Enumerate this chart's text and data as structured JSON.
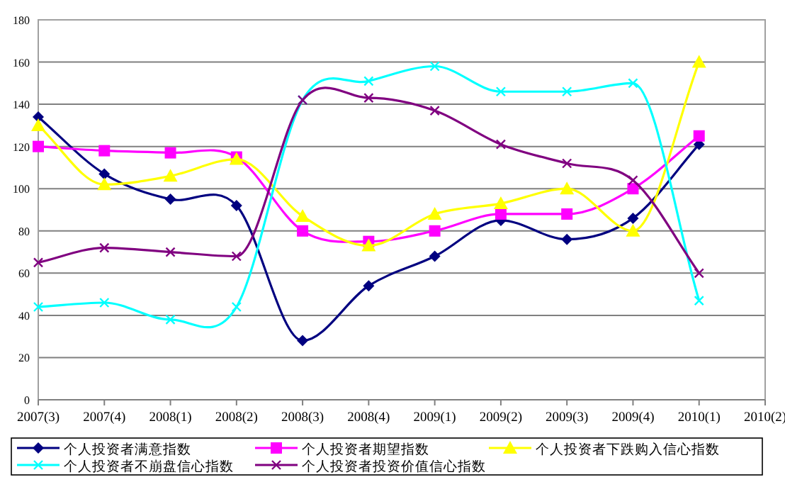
{
  "chart_data": {
    "type": "line",
    "categories": [
      "2007(3)",
      "2007(4)",
      "2008(1)",
      "2008(2)",
      "2008(3)",
      "2008(4)",
      "2009(1)",
      "2009(2)",
      "2009(3)",
      "2009(4)",
      "2010(1)",
      "2010(2)"
    ],
    "ylim": [
      0,
      180
    ],
    "yticks": [
      0,
      20,
      40,
      60,
      80,
      100,
      120,
      140,
      160,
      180
    ],
    "grid": "y",
    "legend": "bottom",
    "series": [
      {
        "name": "个人投资者满意指数",
        "color": "#000080",
        "marker": "diamond",
        "values": [
          134,
          107,
          95,
          92,
          28,
          54,
          68,
          85,
          76,
          86,
          121,
          null
        ]
      },
      {
        "name": "个人投资者期望指数",
        "color": "#ff00ff",
        "marker": "square",
        "values": [
          120,
          118,
          117,
          115,
          80,
          75,
          80,
          88,
          88,
          100,
          125,
          null
        ]
      },
      {
        "name": "个人投资者下跌购入信心指数",
        "color": "#ffff00",
        "marker": "triangle",
        "values": [
          130,
          102,
          106,
          114,
          87,
          73,
          88,
          93,
          100,
          80,
          160,
          null
        ]
      },
      {
        "name": "个人投资者不崩盘信心指数",
        "color": "#00ffff",
        "marker": "cross",
        "values": [
          44,
          46,
          38,
          44,
          142,
          151,
          158,
          146,
          146,
          150,
          47,
          null
        ]
      },
      {
        "name": "个人投资者投资价值信心指数",
        "color": "#800080",
        "marker": "cross",
        "values": [
          65,
          72,
          70,
          68,
          142,
          143,
          137,
          121,
          112,
          104,
          60,
          null
        ]
      }
    ]
  }
}
